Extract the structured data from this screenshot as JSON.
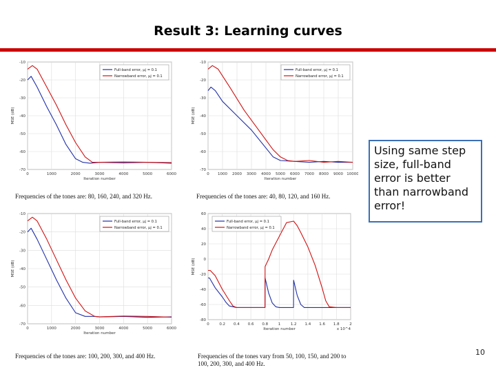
{
  "slide": {
    "title": "Result 3: Learning curves",
    "note": "Using same step size, full-band error is better than narrowband error!",
    "page_number": "10",
    "accent_color": "#cc0000",
    "note_border_color": "#3a6fb3"
  },
  "chart_data": [
    {
      "type": "line",
      "ylabel": "MSE (dB)",
      "xlabel": "Iteration number",
      "xlim": [
        0,
        6000
      ],
      "ylim": [
        -70,
        -10
      ],
      "xticks": [
        "0",
        "1000",
        "2000",
        "3000",
        "4000",
        "5000",
        "6000"
      ],
      "yticks": [
        "-10",
        "-20",
        "-30",
        "-40",
        "-50",
        "-60",
        "-70"
      ],
      "legend_position": "top-right",
      "grid": true,
      "caption": "Frequencies of the tones are: 80, 160, 240, and 320 Hz.",
      "series": [
        {
          "name": "Full-band error, μj = 0.1",
          "color": "#1f2fa8",
          "x": [
            0,
            150,
            400,
            800,
            1200,
            1600,
            2000,
            2300,
            2600,
            3000,
            4000,
            5000,
            6000
          ],
          "y": [
            -20,
            -18,
            -24,
            -35,
            -45,
            -56,
            -64,
            -66,
            -66.5,
            -66,
            -66.3,
            -66,
            -66.5
          ]
        },
        {
          "name": "Narrowband error, μj = 0.1",
          "color": "#d01010",
          "x": [
            0,
            200,
            400,
            800,
            1200,
            1600,
            2000,
            2400,
            2700,
            3000,
            4000,
            5000,
            6000
          ],
          "y": [
            -14,
            -12,
            -14,
            -24,
            -34,
            -45,
            -55,
            -63,
            -66,
            -66,
            -65.8,
            -66,
            -66.2
          ]
        }
      ]
    },
    {
      "type": "line",
      "ylabel": "MSE (dB)",
      "xlabel": "Iteration number",
      "xlim": [
        0,
        10000
      ],
      "ylim": [
        -70,
        -10
      ],
      "xticks": [
        "0",
        "1000",
        "2000",
        "3000",
        "4000",
        "5000",
        "6000",
        "7000",
        "8000",
        "9000",
        "10000"
      ],
      "yticks": [
        "-10",
        "-20",
        "-30",
        "-40",
        "-50",
        "-60",
        "-70"
      ],
      "legend_position": "top-right",
      "grid": true,
      "caption": "Frequencies of the tones are: 40, 80, 120, and 160 Hz.",
      "series": [
        {
          "name": "Full-band error, μj = 0.1",
          "color": "#1f2fa8",
          "x": [
            0,
            200,
            500,
            1000,
            2000,
            3000,
            4000,
            4500,
            5000,
            6000,
            7000,
            8000,
            9000,
            10000
          ],
          "y": [
            -26,
            -24,
            -26,
            -32,
            -40,
            -48,
            -58,
            -63,
            -65,
            -65.5,
            -66,
            -65.5,
            -66,
            -66
          ]
        },
        {
          "name": "Narrowband error, μj = 0.1",
          "color": "#d01010",
          "x": [
            0,
            300,
            700,
            1500,
            2500,
            3500,
            4500,
            5000,
            5500,
            6000,
            7000,
            8000,
            9000,
            10000
          ],
          "y": [
            -14,
            -12,
            -14,
            -24,
            -37,
            -48,
            -59,
            -63,
            -65,
            -65.5,
            -65,
            -66,
            -65.5,
            -66
          ]
        }
      ]
    },
    {
      "type": "line",
      "ylabel": "MSE (dB)",
      "xlabel": "Iteration number",
      "xlim": [
        0,
        6000
      ],
      "ylim": [
        -70,
        -10
      ],
      "xticks": [
        "0",
        "1000",
        "2000",
        "3000",
        "4000",
        "5000",
        "6000"
      ],
      "yticks": [
        "-10",
        "-20",
        "-30",
        "-40",
        "-50",
        "-60",
        "-70"
      ],
      "legend_position": "top-right",
      "grid": true,
      "caption": "Frequencies of the tones are: 100, 200, 300, and 400 Hz.",
      "series": [
        {
          "name": "Full-band error, μj = 0.1",
          "color": "#1f2fa8",
          "x": [
            0,
            150,
            400,
            800,
            1200,
            1600,
            2000,
            2400,
            2800,
            3000,
            4000,
            5000,
            6000
          ],
          "y": [
            -20,
            -18,
            -24,
            -35,
            -46,
            -56,
            -64,
            -66,
            -66,
            -66.3,
            -66,
            -66.5,
            -66.2
          ]
        },
        {
          "name": "Narrowband error, μj = 0.1",
          "color": "#d01010",
          "x": [
            0,
            200,
            400,
            800,
            1200,
            1600,
            2000,
            2400,
            2800,
            3000,
            4000,
            5000,
            6000
          ],
          "y": [
            -14,
            -12,
            -14,
            -24,
            -35,
            -46,
            -56,
            -63,
            -66,
            -66.2,
            -65.8,
            -66,
            -66.4
          ]
        }
      ]
    },
    {
      "type": "line",
      "ylabel": "MSE (dB)",
      "xlabel": "Iteration number",
      "xlim": [
        0,
        2
      ],
      "ylim": [
        -80,
        60
      ],
      "x_multiplier": "x 10^4",
      "xticks": [
        "0",
        "0.2",
        "0.4",
        "0.6",
        "0.8",
        "1",
        "1.2",
        "1.4",
        "1.6",
        "1.8",
        "2"
      ],
      "yticks": [
        "60",
        "40",
        "20",
        "0",
        "-20",
        "-40",
        "-60",
        "-80"
      ],
      "legend_position": "top-left",
      "grid": true,
      "caption": "Frequencies of the tones vary from 50, 100, 150, and 200 to 100, 200, 300, and 400 Hz.",
      "series": [
        {
          "name": "Full-band error, μj = 0.1",
          "color": "#1f2fa8",
          "x": [
            0,
            0.02,
            0.1,
            0.2,
            0.25,
            0.3,
            0.4,
            0.5,
            0.6,
            0.75,
            0.799,
            0.8,
            0.85,
            0.9,
            0.95,
            1.0,
            1.1,
            1.199,
            1.2,
            1.25,
            1.3,
            1.35,
            1.4,
            1.6,
            1.8,
            2.0
          ],
          "y": [
            -25,
            -25,
            -38,
            -50,
            -57,
            -62,
            -64,
            -64,
            -64,
            -64,
            -64,
            -25,
            -45,
            -58,
            -63,
            -64,
            -64,
            -64,
            -28,
            -48,
            -60,
            -64,
            -64,
            -64,
            -64,
            -64
          ]
        },
        {
          "name": "Narrowband error, μj = 0.1",
          "color": "#d01010",
          "x": [
            0,
            0.03,
            0.1,
            0.2,
            0.3,
            0.35,
            0.4,
            0.5,
            0.6,
            0.75,
            0.799,
            0.8,
            0.85,
            0.9,
            1.0,
            1.1,
            1.2,
            1.25,
            1.3,
            1.4,
            1.5,
            1.6,
            1.65,
            1.7,
            1.8,
            2.0
          ],
          "y": [
            -15,
            -15,
            -22,
            -40,
            -55,
            -62,
            -64,
            -64,
            -64,
            -64,
            -64,
            -10,
            0,
            12,
            30,
            48,
            50,
            44,
            35,
            16,
            -8,
            -38,
            -55,
            -63,
            -64,
            -64
          ]
        }
      ]
    }
  ]
}
